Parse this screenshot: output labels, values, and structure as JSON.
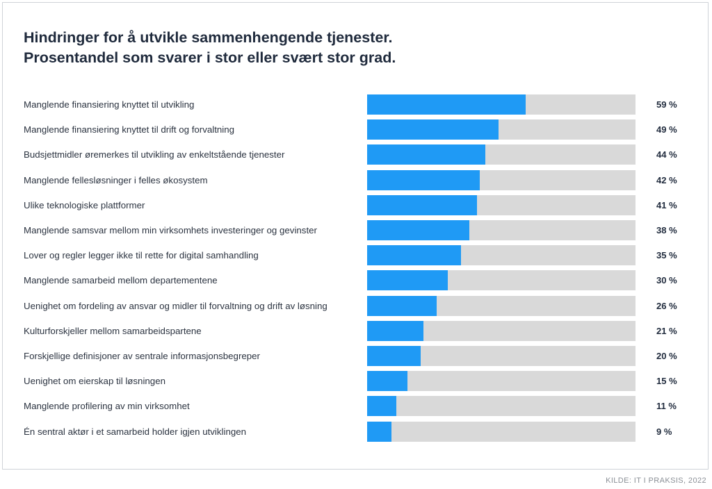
{
  "chart_data": {
    "type": "bar",
    "orientation": "horizontal",
    "title": "Hindringer for å utvikle sammenhengende tjenester.",
    "subtitle": "Prosentandel som svarer i stor eller svært stor grad.",
    "unit": "%",
    "xlim": [
      0,
      100
    ],
    "colors": {
      "bar": "#1f9af5",
      "track": "#d9d9d9"
    },
    "categories": [
      "Manglende finansiering knyttet til utvikling",
      "Manglende finansiering knyttet til drift og forvaltning",
      "Budsjettmidler øremerkes til utvikling av enkeltstående tjenester",
      "Manglende fellesløsninger i felles økosystem",
      "Ulike teknologiske plattformer",
      "Manglende samsvar mellom min virksomhets investeringer og gevinster",
      "Lover og regler legger ikke til rette for digital samhandling",
      "Manglende samarbeid mellom departementene",
      "Uenighet om fordeling av ansvar og midler til forvaltning og drift av løsning",
      "Kulturforskjeller mellom samarbeidspartene",
      "Forskjellige definisjoner av sentrale informasjonsbegreper",
      "Uenighet om eierskap til løsningen",
      "Manglende profilering av min virksomhet",
      "Én sentral aktør i et samarbeid holder igjen utviklingen"
    ],
    "values": [
      59,
      49,
      44,
      42,
      41,
      38,
      35,
      30,
      26,
      21,
      20,
      15,
      11,
      9
    ],
    "value_labels": [
      "59 %",
      "49 %",
      "44 %",
      "42 %",
      "41 %",
      "38 %",
      "35 %",
      "30 %",
      "26 %",
      "21 %",
      "20 %",
      "15 %",
      "11 %",
      "9 %"
    ]
  },
  "footer": {
    "source": "KILDE: IT I PRAKSIS, 2022"
  }
}
